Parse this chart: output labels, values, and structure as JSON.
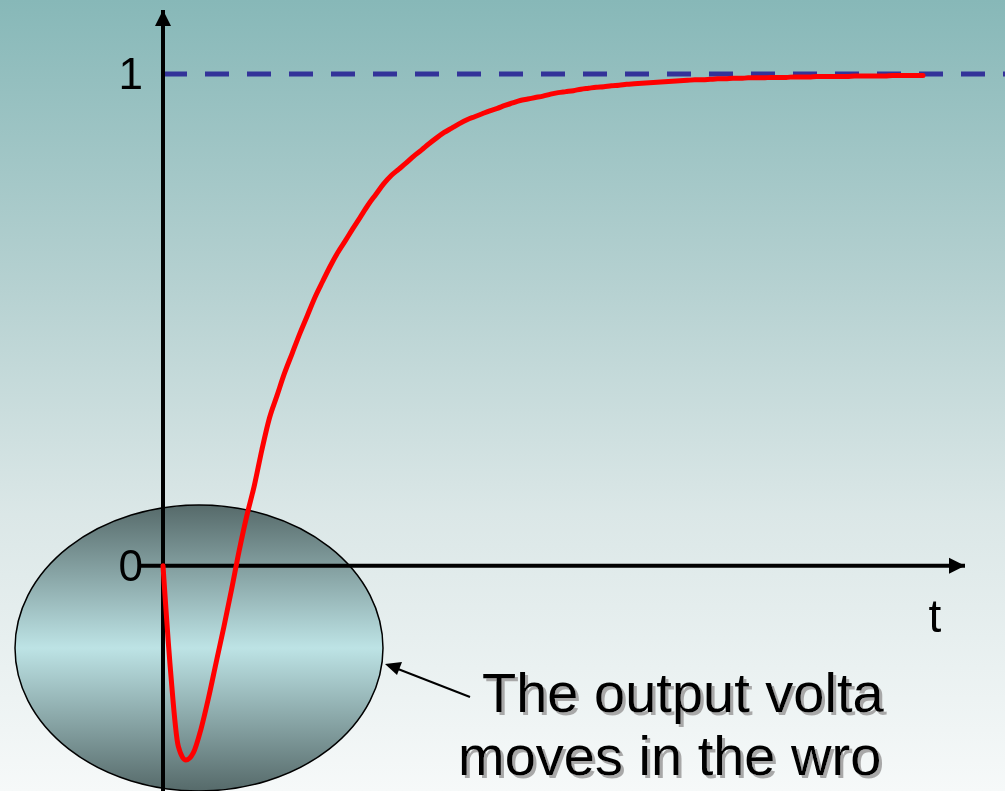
{
  "chart_data": {
    "type": "line",
    "xlabel": "t",
    "tick_labels": "y",
    "categories": [
      null,
      null,
      null,
      null,
      null,
      null,
      null,
      null,
      null,
      null,
      null,
      null,
      null,
      null,
      null,
      null,
      null,
      null,
      null,
      null,
      null,
      null,
      null,
      null,
      null,
      null,
      null,
      null,
      null,
      null,
      null,
      null,
      null,
      null,
      null,
      null,
      null,
      null,
      null,
      null,
      null,
      null,
      null,
      null,
      null,
      null,
      null,
      null,
      null,
      null,
      null,
      null,
      null,
      null,
      null,
      null,
      null,
      null,
      null,
      null,
      null,
      null,
      null,
      null,
      null,
      null,
      null,
      null,
      null,
      null,
      null,
      null,
      null,
      null,
      null,
      null,
      null,
      null,
      null,
      null,
      null,
      null,
      null,
      null,
      null,
      null,
      null,
      null,
      null,
      null,
      null,
      null,
      null,
      null,
      null,
      null,
      null,
      null,
      null,
      null,
      null
    ],
    "series": [
      {
        "color": "#ff0000",
        "values": [
          0,
          -0.215,
          -0.366,
          -0.395,
          -0.38,
          -0.332,
          -0.268,
          -0.196,
          -0.125,
          -0.05,
          0.029,
          0.1,
          0.162,
          0.235,
          0.3,
          0.346,
          0.392,
          0.432,
          0.472,
          0.509,
          0.546,
          0.578,
          0.609,
          0.637,
          0.661,
          0.686,
          0.71,
          0.734,
          0.755,
          0.776,
          0.793,
          0.806,
          0.819,
          0.833,
          0.845,
          0.858,
          0.87,
          0.881,
          0.89,
          0.899,
          0.907,
          0.913,
          0.919,
          0.925,
          0.93,
          0.936,
          0.941,
          0.946,
          0.949,
          0.952,
          0.955,
          0.959,
          0.962,
          0.964,
          0.966,
          0.969,
          0.971,
          0.973,
          0.974,
          0.976,
          0.977,
          0.979,
          0.98,
          0.981,
          0.982,
          0.983,
          0.984,
          0.985,
          0.986,
          0.987,
          0.988,
          0.988,
          0.989,
          0.99,
          0.99,
          0.991,
          0.991,
          0.992,
          0.992,
          0.992,
          0.993,
          0.993,
          0.993,
          0.994,
          0.994,
          0.994,
          0.995,
          0.995,
          0.995,
          0.995,
          0.995,
          0.996,
          0.996,
          0.996,
          0.996,
          0.996,
          0.997,
          0.997,
          0.997,
          0.997,
          0.997
        ]
      }
    ],
    "ylim": [
      -0.46,
      1.13
    ],
    "yticks": [
      0,
      1
    ],
    "ref_lines": [
      {
        "axis": "y",
        "value": 1,
        "color": "#333399",
        "line_style": "dashed"
      }
    ],
    "annotations": [
      "The output volta",
      "moves in the wro"
    ]
  }
}
